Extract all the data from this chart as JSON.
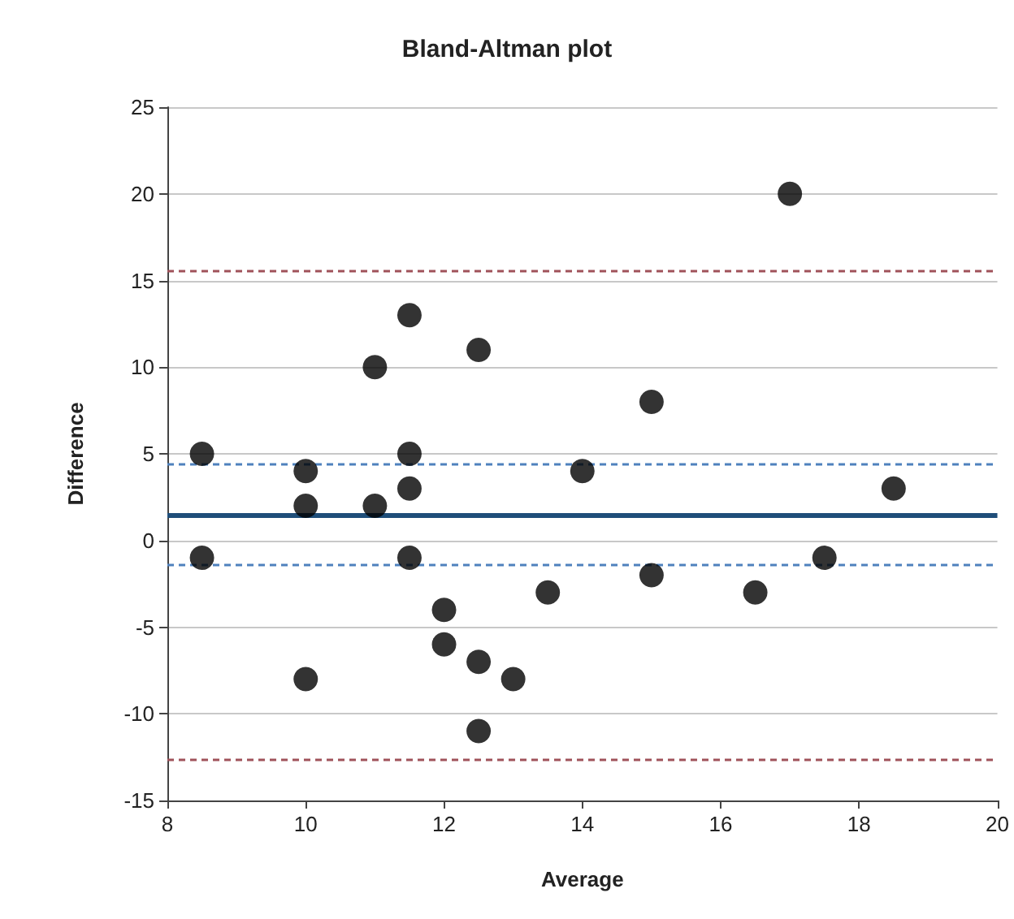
{
  "chart_data": {
    "type": "scatter",
    "title": "Bland-Altman plot",
    "xlabel": "Average",
    "ylabel": "Difference",
    "x": [
      8.5,
      8.5,
      10,
      10,
      10,
      11,
      11,
      11.5,
      11.5,
      11.5,
      11.5,
      12,
      12,
      12.5,
      12.5,
      12.5,
      13,
      13.5,
      14,
      15,
      15,
      16.5,
      17,
      17.5,
      18.5
    ],
    "values": [
      5,
      -1,
      4,
      2,
      -8,
      10,
      2,
      13,
      5,
      3,
      -1,
      -4,
      -6,
      11,
      -7,
      -11,
      -8,
      -3,
      4,
      8,
      -2,
      -3,
      20,
      -1,
      3
    ],
    "color": "#000000",
    "marker": "circle",
    "xlim": [
      8,
      20
    ],
    "xticks": [
      8,
      10,
      12,
      14,
      16,
      18,
      20
    ],
    "ylim": [
      -15,
      25
    ],
    "yticks": [
      -15,
      -10,
      -5,
      0,
      5,
      10,
      15,
      20,
      25
    ],
    "grid": "y",
    "ref_lines": [
      {
        "axis": "y",
        "value": 1.5,
        "color": "#1f4e79",
        "line_style": "solid"
      },
      {
        "axis": "y",
        "value": 4.4,
        "color": "#4f81bd",
        "line_style": "dashed"
      },
      {
        "axis": "y",
        "value": -1.4,
        "color": "#4f81bd",
        "line_style": "dashed"
      },
      {
        "axis": "y",
        "value": 15.6,
        "color": "#a0525a",
        "line_style": "dashed"
      },
      {
        "axis": "y",
        "value": -12.6,
        "color": "#a0525a",
        "line_style": "dashed"
      }
    ]
  }
}
